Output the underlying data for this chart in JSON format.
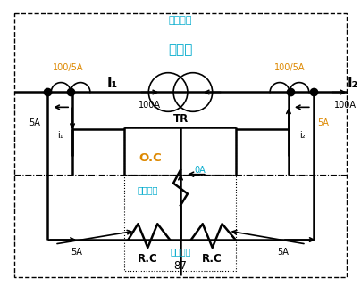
{
  "bg_color": "#ffffff",
  "line_color": "#000000",
  "cyan_color": "#00aacc",
  "orange_color": "#dd8800",
  "gray_color": "#888888",
  "labels": {
    "boho": "보호범위",
    "byeonamgi": "변압기",
    "TR": "TR",
    "I1": "I₁",
    "I2": "I₂",
    "i1": "i₁",
    "i2": "i₂",
    "100_5A_left": "100/5A",
    "100_5A_right": "100/5A",
    "100A_left": "100A",
    "100A_right": "100A",
    "5A_left_vert": "5A",
    "5A_right_vert": "5A",
    "5A_left_horiz": "5A",
    "5A_right_horiz": "5A",
    "OC": "O.C",
    "0A": "0A",
    "RC_left": "R.C",
    "RC_right": "R.C",
    "eokje": "억제코일",
    "dongjakcoil": "동작코일",
    "87": "87"
  }
}
